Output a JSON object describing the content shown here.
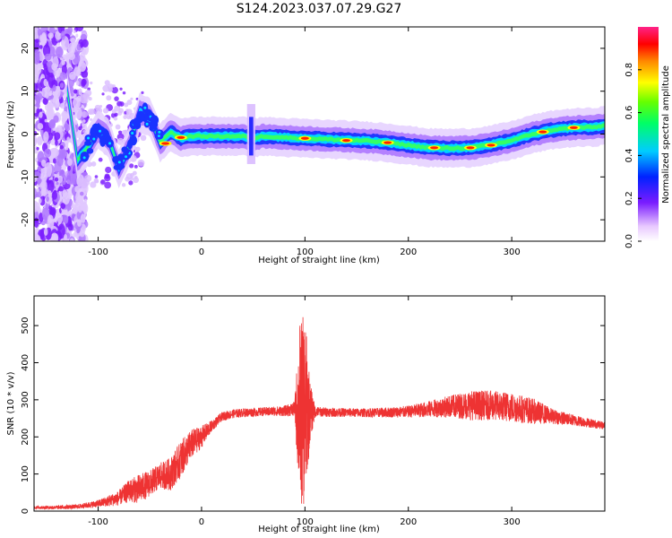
{
  "title": "S124.2023.037.07.29.G27",
  "chart_data": [
    {
      "type": "heatmap",
      "xlabel": "Height of straight line (km)",
      "ylabel": "Frequency (Hz)",
      "xlim": [
        -162,
        390
      ],
      "ylim": [
        -25,
        25
      ],
      "xticks": [
        -100,
        0,
        100,
        200,
        300
      ],
      "yticks": [
        -20,
        -10,
        0,
        10,
        20
      ],
      "colorbar": {
        "label": "Normalized spectral amplitude",
        "range": [
          0.0,
          1.0
        ],
        "ticks": [
          0.0,
          0.2,
          0.4,
          0.6,
          0.8
        ]
      },
      "ridge": {
        "x": [
          -150,
          -140,
          -130,
          -120,
          -110,
          -100,
          -90,
          -80,
          -70,
          -60,
          -50,
          -40,
          -30,
          -20,
          -10,
          0,
          20,
          40,
          50,
          60,
          80,
          100,
          120,
          140,
          160,
          180,
          200,
          220,
          240,
          260,
          280,
          300,
          320,
          340,
          360,
          380,
          390
        ],
        "y": [
          5,
          -8,
          10,
          -6,
          -3,
          1,
          -1,
          -8,
          -3,
          5,
          4,
          -2,
          0.5,
          -1,
          -0.5,
          -0.5,
          -0.5,
          -0.5,
          -1,
          -0.5,
          -0.8,
          -1,
          -1.2,
          -1.4,
          -1.6,
          -2,
          -2.6,
          -3.2,
          -3.3,
          -3.2,
          -2.5,
          -1.5,
          0,
          1,
          1.5,
          1.6,
          2
        ]
      },
      "hotspots": [
        {
          "x": -35,
          "y": -2.2
        },
        {
          "x": -20,
          "y": -0.8
        },
        {
          "x": 100,
          "y": -1.0
        },
        {
          "x": 140,
          "y": -1.5
        },
        {
          "x": 180,
          "y": -2.0
        },
        {
          "x": 225,
          "y": -3.2
        },
        {
          "x": 260,
          "y": -3.2
        },
        {
          "x": 280,
          "y": -2.6
        },
        {
          "x": 330,
          "y": 0.5
        },
        {
          "x": 360,
          "y": 1.5
        }
      ]
    },
    {
      "type": "line",
      "xlabel": "Height of straight line (km)",
      "ylabel": "SNR (10 * v/v)",
      "xlim": [
        -162,
        390
      ],
      "ylim": [
        0,
        580
      ],
      "xticks": [
        -100,
        0,
        100,
        200,
        300
      ],
      "yticks": [
        0,
        100,
        200,
        300,
        400,
        500
      ],
      "color": "#ee3333",
      "envelope": {
        "x": [
          -162,
          -140,
          -120,
          -100,
          -80,
          -70,
          -60,
          -50,
          -40,
          -30,
          -20,
          -10,
          0,
          10,
          20,
          30,
          40,
          60,
          80,
          90,
          95,
          100,
          105,
          110,
          130,
          160,
          180,
          200,
          220,
          240,
          260,
          280,
          300,
          320,
          340,
          360,
          390
        ],
        "mean": [
          10,
          10,
          12,
          20,
          35,
          55,
          60,
          75,
          95,
          100,
          140,
          180,
          200,
          230,
          255,
          262,
          265,
          268,
          270,
          275,
          265,
          270,
          268,
          268,
          266,
          265,
          266,
          268,
          275,
          282,
          285,
          285,
          280,
          270,
          255,
          245,
          230
        ],
        "noise": [
          4,
          5,
          6,
          10,
          20,
          30,
          40,
          35,
          35,
          45,
          50,
          40,
          30,
          15,
          12,
          12,
          12,
          12,
          14,
          20,
          250,
          260,
          80,
          14,
          12,
          12,
          14,
          16,
          22,
          30,
          40,
          40,
          40,
          35,
          20,
          15,
          10
        ]
      }
    }
  ]
}
